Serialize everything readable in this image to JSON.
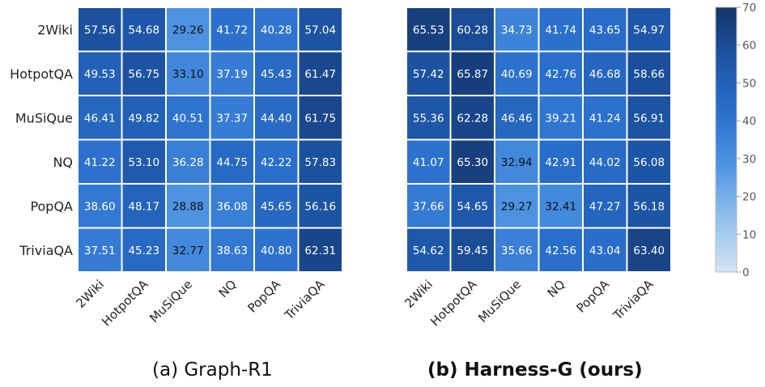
{
  "chart_data": [
    {
      "type": "heatmap",
      "caption": "(a) Graph-R1",
      "rows": [
        "2Wiki",
        "HotpotQA",
        "MuSiQue",
        "NQ",
        "PopQA",
        "TriviaQA"
      ],
      "columns": [
        "2Wiki",
        "HotpotQA",
        "MuSiQue",
        "NQ",
        "PopQA",
        "TriviaQA"
      ],
      "values": [
        [
          57.56,
          54.68,
          29.26,
          41.72,
          40.28,
          57.04
        ],
        [
          49.53,
          56.75,
          33.1,
          37.19,
          45.43,
          61.47
        ],
        [
          46.41,
          49.82,
          40.51,
          37.37,
          44.4,
          61.75
        ],
        [
          41.22,
          53.1,
          36.28,
          44.75,
          42.22,
          57.83
        ],
        [
          38.6,
          48.17,
          28.88,
          36.08,
          45.65,
          56.16
        ],
        [
          37.51,
          45.23,
          32.77,
          38.63,
          40.8,
          62.31
        ]
      ],
      "value_range": [
        0,
        70
      ]
    },
    {
      "type": "heatmap",
      "caption": "(b) Harness-G (ours)",
      "rows": [
        "2Wiki",
        "HotpotQA",
        "MuSiQue",
        "NQ",
        "PopQA",
        "TriviaQA"
      ],
      "columns": [
        "2Wiki",
        "HotpotQA",
        "MuSiQue",
        "NQ",
        "PopQA",
        "TriviaQA"
      ],
      "values": [
        [
          65.53,
          60.28,
          34.73,
          41.74,
          43.65,
          54.97
        ],
        [
          57.42,
          65.87,
          40.69,
          42.76,
          46.68,
          58.66
        ],
        [
          55.36,
          62.28,
          46.46,
          39.21,
          41.24,
          56.91
        ],
        [
          41.07,
          65.3,
          32.94,
          42.91,
          44.02,
          56.08
        ],
        [
          37.66,
          54.65,
          29.27,
          32.41,
          47.27,
          56.18
        ],
        [
          54.62,
          59.45,
          35.66,
          42.56,
          43.04,
          63.4
        ]
      ],
      "value_range": [
        0,
        70
      ]
    }
  ],
  "colorbar": {
    "ticks": [
      0,
      10,
      20,
      30,
      40,
      50,
      60,
      70
    ],
    "range": [
      0,
      70
    ],
    "colormap": [
      "#d4e4f5",
      "#94c0ed",
      "#4f95e3",
      "#2a6fcc",
      "#1d55a6",
      "#15346a"
    ]
  }
}
